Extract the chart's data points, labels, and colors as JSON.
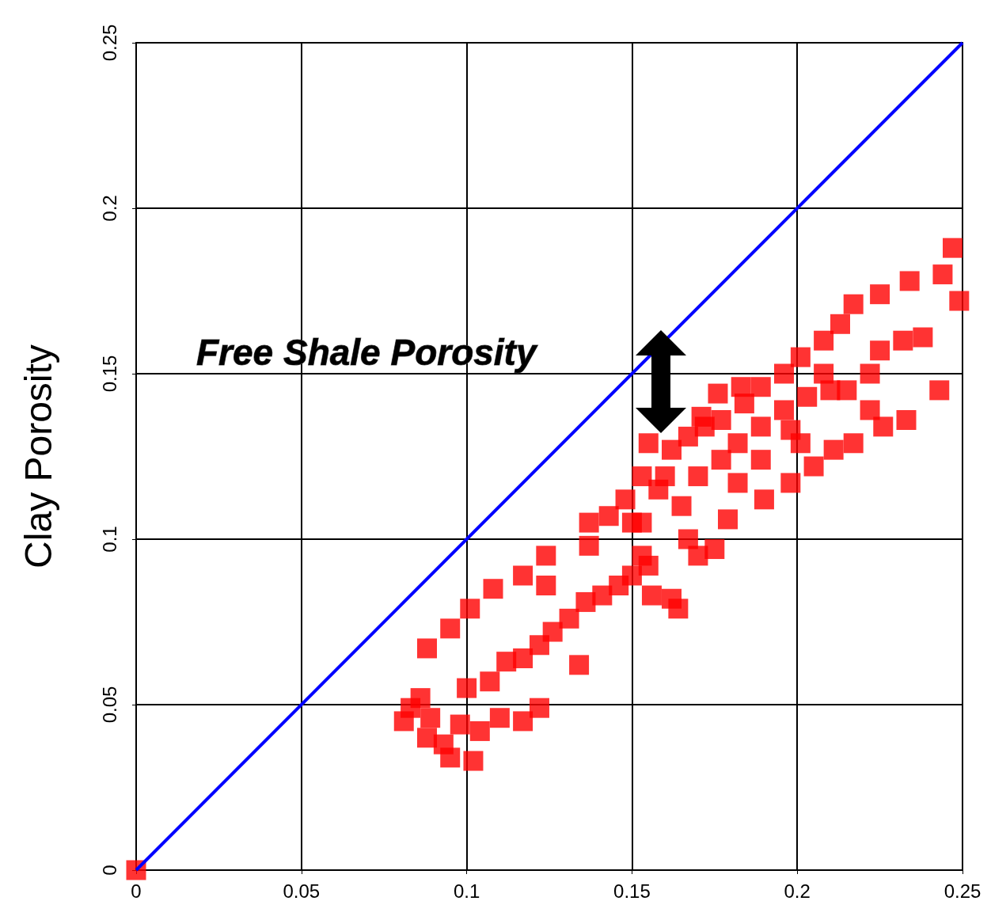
{
  "chart_data": {
    "type": "scatter",
    "ylabel": "Clay Porosity",
    "xlim": [
      0,
      0.25
    ],
    "ylim": [
      0,
      0.25
    ],
    "xticks": [
      0,
      0.05,
      0.1,
      0.15,
      0.2,
      0.25
    ],
    "yticks": [
      0,
      0.05,
      0.1,
      0.15,
      0.2,
      0.25
    ],
    "grid": true,
    "annotations": [
      "Free Shale Porosity"
    ],
    "series": [
      {
        "type": "line",
        "color": "#0000ff",
        "x": [
          0,
          0.25
        ],
        "values": [
          0,
          0.25
        ]
      },
      {
        "color": "#ff0000",
        "marker": "square",
        "x": [
          0,
          0.081,
          0.083,
          0.086,
          0.088,
          0.093,
          0.095,
          0.102,
          0.104,
          0.11,
          0.117,
          0.122,
          0.089,
          0.098,
          0.1,
          0.107,
          0.112,
          0.117,
          0.122,
          0.126,
          0.131,
          0.136,
          0.141,
          0.134,
          0.146,
          0.15,
          0.155,
          0.156,
          0.162,
          0.164,
          0.088,
          0.095,
          0.101,
          0.108,
          0.117,
          0.124,
          0.124,
          0.137,
          0.137,
          0.143,
          0.148,
          0.153,
          0.155,
          0.162,
          0.167,
          0.172,
          0.177,
          0.184,
          0.189,
          0.196,
          0.201,
          0.208,
          0.213,
          0.217,
          0.225,
          0.234,
          0.244,
          0.247,
          0.249,
          0.158,
          0.165,
          0.17,
          0.177,
          0.182,
          0.189,
          0.196,
          0.203,
          0.21,
          0.208,
          0.167,
          0.17,
          0.175,
          0.179,
          0.153,
          0.153,
          0.182,
          0.19,
          0.198,
          0.205,
          0.211,
          0.217,
          0.226,
          0.233,
          0.222,
          0.232,
          0.238,
          0.243,
          0.201,
          0.198,
          0.225,
          0.222,
          0.215,
          0.183,
          0.176,
          0.171,
          0.189,
          0.16,
          0.15
        ],
        "values": [
          0,
          0.045,
          0.049,
          0.052,
          0.04,
          0.038,
          0.034,
          0.033,
          0.042,
          0.046,
          0.045,
          0.049,
          0.046,
          0.044,
          0.055,
          0.057,
          0.063,
          0.064,
          0.068,
          0.072,
          0.076,
          0.081,
          0.083,
          0.062,
          0.086,
          0.089,
          0.092,
          0.083,
          0.082,
          0.079,
          0.067,
          0.073,
          0.079,
          0.085,
          0.089,
          0.095,
          0.086,
          0.098,
          0.105,
          0.107,
          0.112,
          0.119,
          0.129,
          0.127,
          0.131,
          0.134,
          0.136,
          0.141,
          0.146,
          0.15,
          0.155,
          0.16,
          0.165,
          0.171,
          0.174,
          0.178,
          0.18,
          0.188,
          0.172,
          0.115,
          0.11,
          0.119,
          0.124,
          0.129,
          0.134,
          0.139,
          0.143,
          0.145,
          0.15,
          0.1,
          0.095,
          0.097,
          0.106,
          0.095,
          0.105,
          0.117,
          0.112,
          0.117,
          0.122,
          0.127,
          0.129,
          0.134,
          0.136,
          0.139,
          0.16,
          0.161,
          0.145,
          0.129,
          0.133,
          0.157,
          0.15,
          0.145,
          0.146,
          0.144,
          0.137,
          0.124,
          0.119,
          0.105
        ]
      }
    ]
  }
}
